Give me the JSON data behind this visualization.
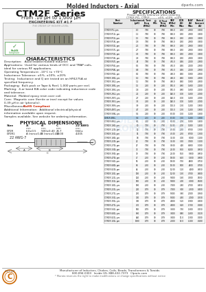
{
  "bg_color": "#ffffff",
  "header_line_color": "#777777",
  "header_title": "Molded Inductors - Axial",
  "header_url": "clparts.com",
  "series_title": "CTM2F Series",
  "series_subtitle": "From .10 μH to 1,000 μH",
  "eng_kit": "ENGINEERING KIT #1 F",
  "section_char": "CHARACTERISTICS",
  "char_lines": [
    "Description:   Axial leaded molded inductor.",
    "Applications:  Used for various kinds of OCC and TRAP coils,",
    "ideal for various RF applications.",
    "Operating Temperature: -10°C to +70°C",
    "Inductance Tolerance: ±5%, ±10%, ±20%",
    "Testing:  Inductance and Q are tested on an HP4275A at",
    "specified frequency.",
    "Packaging:  Bulk pack or Tape & Reel, 1,000 parts per reel.",
    "Marking:  4-or band EIA color code indicating inductance code",
    "and tolerance.",
    "Material:  Molded epoxy resin over coil.",
    "Core:  Magnetic core (ferrite or iron) except for values",
    "0-39 μH in air (phenolic).",
    "Miscellaneous:  RoHS Compliant",
    "Additional Information:  Additional electrical/physical",
    "information available upon request.",
    "Samples available. See website for ordering information."
  ],
  "rohs_text": "RoHS Compliant",
  "rohs_color": "#cc2200",
  "section_phys": "PHYSICAL DIMENSIONS",
  "spec_title": "SPECIFICATIONS",
  "spec_note": "Please specify tolerance when ordering.",
  "spec_note2": "CTM2F-P5L, CTM2F--------, ±5%, ±10%, ±20%.",
  "spec_col_headers": [
    "Part\nNumber",
    "Inductance\n(μH)",
    "L Test\nFreq\n(MHz)",
    "Q\nMin",
    "Q Test\nFreq\n(MHz)",
    "SRF\n(MHz)\nMin",
    "DCR\n(Ω)\nMax",
    "ISAT\n(A)\nMax",
    "Rated\nCurrent\n(A)"
  ],
  "spec_rows": [
    [
      "CTM2F-P1L pm",
      ".10",
      "7.90",
      "30",
      "7.90",
      "800.0",
      ".030",
      "2.900",
      ".3600"
    ],
    [
      "CTM2F-P12L pm",
      ".12",
      "7.90",
      "30",
      "7.90",
      "800.0",
      ".030",
      "2.900",
      ".3600"
    ],
    [
      "CTM2F-P15L pm",
      ".15",
      "7.90",
      "30",
      "7.90",
      "800.0",
      ".030",
      "2.900",
      ".3600"
    ],
    [
      "CTM2F-P18L pm",
      ".18",
      "7.90",
      "30",
      "7.90",
      "800.0",
      ".030",
      "2.900",
      ".3600"
    ],
    [
      "CTM2F-P22L pm",
      ".22",
      "7.90",
      "30",
      "7.90",
      "800.0",
      ".030",
      "2.900",
      ".3600"
    ],
    [
      "CTM2F-P27L pm",
      ".27",
      "7.90",
      "30",
      "7.90",
      "800.0",
      ".030",
      "2.900",
      ".3600"
    ],
    [
      "CTM2F-P33L pm",
      ".33",
      "7.90",
      "30",
      "7.90",
      "800.0",
      ".030",
      "2.900",
      ".3600"
    ],
    [
      "CTM2F-P39L pm",
      ".39",
      "7.90",
      "30",
      "7.90",
      "800.0",
      ".030",
      "2.900",
      ".3600"
    ],
    [
      "CTM2F-P47L pm",
      ".47",
      "7.90",
      "30",
      "7.90",
      "465.0",
      ".046",
      "2.100",
      ".2900"
    ],
    [
      "CTM2F-P56L pm",
      ".56",
      "7.90",
      "30",
      "7.90",
      "465.0",
      ".046",
      "2.100",
      ".2900"
    ],
    [
      "CTM2F-P68L pm",
      ".68",
      "7.90",
      "30",
      "7.90",
      "465.0",
      ".046",
      "2.100",
      ".2900"
    ],
    [
      "CTM2F-P82L pm",
      ".82",
      "7.90",
      "30",
      "7.90",
      "400.0",
      ".060",
      "1.900",
      ".2600"
    ],
    [
      "CTM2F-1R0L pm",
      "1.0",
      "7.90",
      "30",
      "7.90",
      "400.0",
      ".060",
      "1.900",
      ".2600"
    ],
    [
      "CTM2F-1R2L pm",
      "1.2",
      "7.90",
      "30",
      "7.90",
      "400.0",
      ".060",
      "1.900",
      ".2600"
    ],
    [
      "CTM2F-1R5L pm",
      "1.5",
      "2.50",
      "30",
      "2.50",
      "185.0",
      ".080",
      "1.600",
      ".2200"
    ],
    [
      "CTM2F-1R8L pm",
      "1.8",
      "2.50",
      "30",
      "2.50",
      "185.0",
      ".080",
      "1.600",
      ".2200"
    ],
    [
      "CTM2F-2R2L pm",
      "2.2",
      "2.50",
      "30",
      "2.50",
      "140.0",
      ".100",
      "1.400",
      ".2000"
    ],
    [
      "CTM2F-2R7L pm",
      "2.7",
      "2.50",
      "30",
      "2.50",
      "140.0",
      ".100",
      "1.400",
      ".2000"
    ],
    [
      "CTM2F-3R3L pm",
      "3.3",
      "2.50",
      "30",
      "2.50",
      "140.0",
      ".100",
      "1.400",
      ".2000"
    ],
    [
      "CTM2F-3R9L pm",
      "3.9",
      "2.50",
      "30",
      "2.50",
      "110.0",
      ".130",
      "1.200",
      ".1800"
    ],
    [
      "CTM2F-4R7L pm",
      "4.7",
      "2.50",
      "30",
      "2.50",
      "110.0",
      ".130",
      "1.200",
      ".1800"
    ],
    [
      "CTM2F-5R6L pm",
      "5.6",
      "2.50",
      "30",
      "2.50",
      "85.00",
      ".150",
      "1.100",
      ".1600"
    ],
    [
      "CTM2F-6R8L",
      "6.8",
      "2.50",
      "30",
      "2.50",
      "85.00",
      ".150",
      "1.100",
      ".1600"
    ],
    [
      "CTM2F-8R2L pm",
      "8.2",
      "2.50",
      "30",
      "2.50",
      "65.00",
      ".200",
      "1.000",
      ".1400"
    ],
    [
      "CTM2F-100L pm",
      "10",
      ".790",
      "30",
      ".790",
      "55.00",
      ".200",
      "1.000",
      ".1400"
    ],
    [
      "CTM2F-120L pm",
      "12",
      ".790",
      "30",
      ".790",
      "45.00",
      ".250",
      ".8700",
      ".1300"
    ],
    [
      "CTM2F-150L pm",
      "15",
      ".790",
      "30",
      ".790",
      "45.00",
      ".250",
      ".8700",
      ".1300"
    ],
    [
      "CTM2F-180L pm",
      "18",
      ".790",
      "30",
      ".790",
      "35.00",
      ".300",
      ".8000",
      ".1200"
    ],
    [
      "CTM2F-220L pm",
      "22",
      ".790",
      "30",
      ".790",
      "35.00",
      ".350",
      ".7400",
      ".1100"
    ],
    [
      "CTM2F-270L pm",
      "27",
      ".790",
      "30",
      ".790",
      "30.00",
      ".400",
      ".6800",
      ".1000"
    ],
    [
      "CTM2F-330L pm",
      "33",
      ".790",
      "30",
      ".790",
      "25.00",
      ".500",
      ".6200",
      ".0950"
    ],
    [
      "CTM2F-390L pm",
      "39",
      ".790",
      "30",
      ".790",
      "25.00",
      ".550",
      ".5800",
      ".0850"
    ],
    [
      "CTM2F-470L pm",
      "47",
      ".250",
      "30",
      ".250",
      "18.00",
      ".650",
      ".5300",
      ".0800"
    ],
    [
      "CTM2F-560L pm",
      "56",
      ".250",
      "30",
      ".250",
      "18.00",
      ".750",
      ".4900",
      ".0750"
    ],
    [
      "CTM2F-680L pm",
      "68",
      ".250",
      "30",
      ".250",
      "15.00",
      ".900",
      ".4400",
      ".0700"
    ],
    [
      "CTM2F-820L pm",
      "82",
      ".250",
      "30",
      ".250",
      "12.00",
      "1.10",
      ".4000",
      ".0650"
    ],
    [
      "CTM2F-101L pm",
      "100",
      ".250",
      "30",
      ".250",
      "12.00",
      "1.30",
      ".3700",
      ".0600"
    ],
    [
      "CTM2F-121L pm",
      "120",
      ".250",
      "30",
      ".250",
      "9.000",
      "1.60",
      ".3300",
      ".0550"
    ],
    [
      "CTM2F-151L pm",
      "150",
      ".250",
      "30",
      ".250",
      "9.000",
      "2.00",
      ".3000",
      ".0500"
    ],
    [
      "CTM2F-181L pm",
      "180",
      ".250",
      "30",
      ".250",
      "7.000",
      "2.40",
      ".2700",
      ".0450"
    ],
    [
      "CTM2F-221L pm",
      "220",
      ".079",
      "30",
      ".079",
      "7.000",
      "3.00",
      ".2500",
      ".0400"
    ],
    [
      "CTM2F-271L pm",
      "270",
      ".079",
      "30",
      ".079",
      "5.000",
      "3.60",
      ".2200",
      ".0360"
    ],
    [
      "CTM2F-331L pm",
      "330",
      ".079",
      "30",
      ".079",
      "5.000",
      "4.30",
      ".2000",
      ".0330"
    ],
    [
      "CTM2F-391L pm",
      "390",
      ".079",
      "30",
      ".079",
      "4.000",
      "5.10",
      ".1900",
      ".0300"
    ],
    [
      "CTM2F-471L pm",
      "470",
      ".079",
      "30",
      ".079",
      "4.000",
      "6.20",
      ".1700",
      ".0280"
    ],
    [
      "CTM2F-561L pm",
      "560",
      ".079",
      "30",
      ".079",
      "3.500",
      "7.30",
      ".1600",
      ".0250"
    ],
    [
      "CTM2F-681L pm",
      "680",
      ".079",
      "30",
      ".079",
      "3.000",
      "8.80",
      ".1400",
      ".0220"
    ],
    [
      "CTM2F-821L pm",
      "820",
      ".079",
      "30",
      ".079",
      "3.000",
      "11.0",
      ".1300",
      ".0200"
    ],
    [
      "CTM2F-102L pm",
      "1000",
      ".079",
      "30",
      ".079",
      "2.500",
      "13.0",
      ".1200",
      ".0180"
    ]
  ],
  "highlight_row_idx": 22,
  "highlight_color": "#b8d4e8",
  "footer_text1": "Manufacturer of Inductors, Chokes, Coils, Beads, Transformers & Toroids",
  "footer_text2": "800-894-0303   Inside US: 888-432-7373   Clparts.com",
  "footer_note": "* Murata reserves the right to make modifications or change specifications without notice",
  "date_code": "1.17.07",
  "watermark_lines": [
    "ЭЛЕКТРОННЫЕ",
    "КОМПОНЕНТЫ"
  ],
  "watermark_color": "#b0c8e0",
  "watermark_alpha": 0.25
}
